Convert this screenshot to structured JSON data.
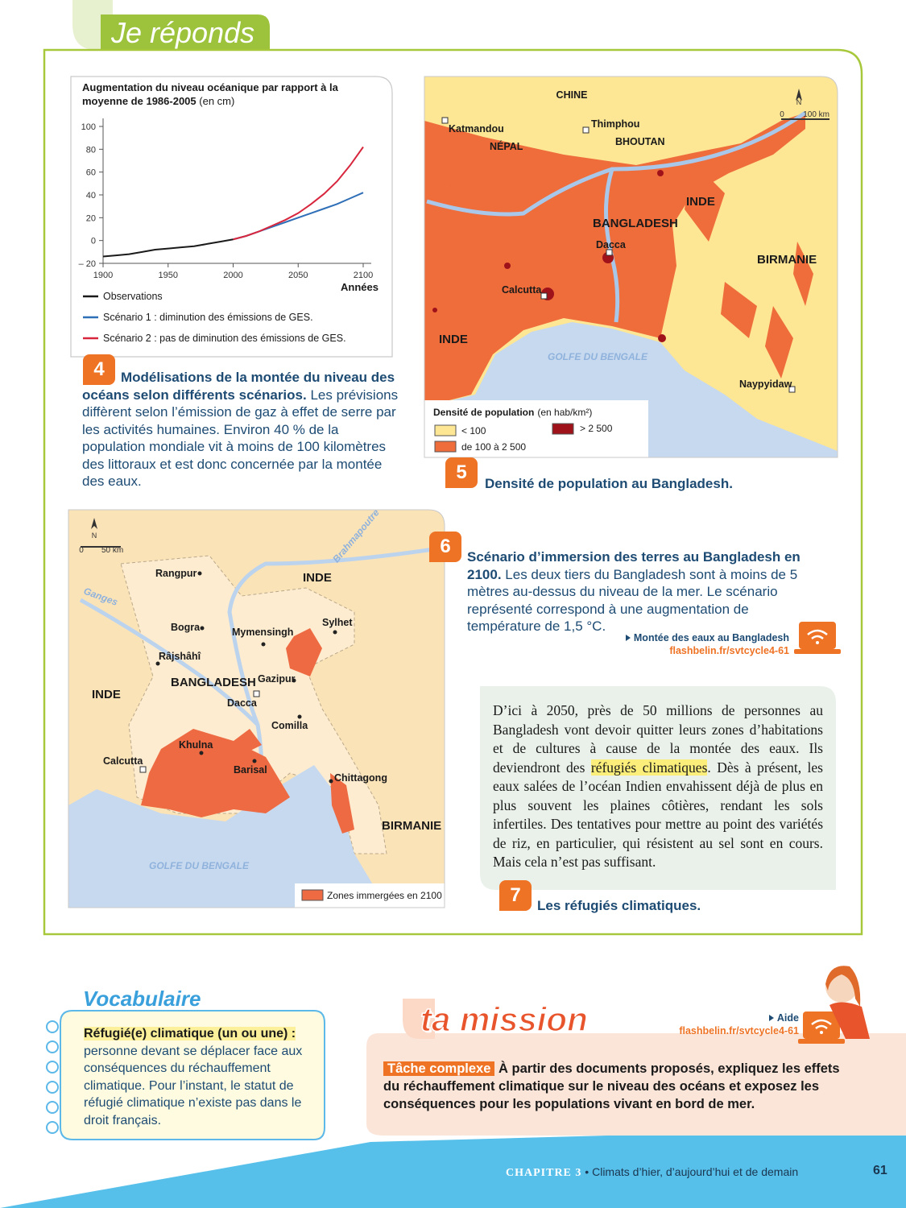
{
  "header": {
    "title": "Je réponds"
  },
  "chart_data": {
    "type": "line",
    "title": "Augmentation du niveau océanique par rapport à la moyenne de 1986-2005",
    "subtitle": "(en cm)",
    "xlabel": "Années",
    "x": [
      1900,
      1910,
      1920,
      1930,
      1940,
      1950,
      1960,
      1970,
      1980,
      1990,
      2000,
      2010,
      2020,
      2030,
      2040,
      2050,
      2060,
      2070,
      2080,
      2090,
      2100
    ],
    "series": [
      {
        "name": "Observations",
        "color": "#1a1a1a",
        "values": [
          -14,
          -13,
          -12,
          -10,
          -8,
          -7,
          -6,
          -5,
          -3,
          -1,
          1,
          null,
          null,
          null,
          null,
          null,
          null,
          null,
          null,
          null,
          null
        ]
      },
      {
        "name": "Scénario 1 : diminution des émissions de GES.",
        "color": "#2f6fb7",
        "values": [
          null,
          null,
          null,
          null,
          null,
          null,
          null,
          null,
          null,
          null,
          1,
          4,
          8,
          12,
          16,
          20,
          24,
          28,
          32,
          37,
          42
        ]
      },
      {
        "name": "Scénario 2 : pas de diminution des émissions de GES.",
        "color": "#d7263d",
        "values": [
          null,
          null,
          null,
          null,
          null,
          null,
          null,
          null,
          null,
          null,
          1,
          4,
          8,
          13,
          18,
          24,
          32,
          41,
          52,
          66,
          82
        ]
      }
    ],
    "xlim": [
      1900,
      2100
    ],
    "xticks": [
      1900,
      1950,
      2000,
      2050,
      2100
    ],
    "ylim": [
      -20,
      100
    ],
    "yticks": [
      {
        "value": -20,
        "label": "– 20"
      },
      0,
      20,
      40,
      60,
      80,
      100
    ],
    "grid": false
  },
  "doc4": {
    "number": "4",
    "caption_title": "Modélisations de la montée du niveau des océans selon différents scénarios.",
    "caption_text": "Les prévisions diffèrent selon l’émission de gaz à effet de serre par les activités humaines. Environ 40 % de la population mondiale vit à moins de 100 kilomètres des littoraux et est donc concernée par la montée des eaux."
  },
  "doc5": {
    "number": "5",
    "caption": "Densité de population au Bangladesh.",
    "labels": [
      "CHINE",
      "Katmandou",
      "NÉPAL",
      "Thimphou",
      "BHOUTAN",
      "INDE",
      "BANGLADESH",
      "Dacca",
      "BIRMANIE",
      "Calcutta",
      "INDE",
      "GOLFE DU BENGALE",
      "Naypyidaw"
    ],
    "north": "N",
    "scale": [
      "0",
      "100 km"
    ],
    "legend": {
      "title": "Densité de population",
      "unit": "(en hab/km²)",
      "items": [
        "< 100",
        "> 2 500",
        "de 100 à 2 500"
      ]
    }
  },
  "doc6": {
    "number": "6",
    "caption_title": "Scénario d’immersion des terres au Bangladesh en 2100.",
    "caption_text": "Les deux tiers du Bangladesh sont à moins de 5 mètres au-dessus du niveau de la mer. Le scénario représenté correspond à une augmentation de température de 1,5 °C.",
    "link": {
      "title": "Montée des eaux au Bangladesh",
      "url": "flashbelin.fr/svtcycle4-61"
    },
    "labels": [
      "Brahmapoutre",
      "Rangpur",
      "INDE",
      "Ganges",
      "Bogra",
      "Mymensingh",
      "Sylhet",
      "Râjshâhî",
      "BANGLADESH",
      "Gazipur",
      "Dacca",
      "INDE",
      "Comilla",
      "Khulna",
      "Calcutta",
      "Barisal",
      "Chittagong",
      "BIRMANIE",
      "GOLFE DU BENGALE"
    ],
    "north": "N",
    "scale": [
      "0",
      "50 km"
    ],
    "legend": "Zones immergées en 2100"
  },
  "doc7": {
    "number": "7",
    "caption": "Les réfugiés climatiques.",
    "text": [
      "D’ici à 2050, près de 50 millions de personnes au Bangladesh vont devoir quitter leurs zones d’habitations et de cultures à cause de la montée des eaux. Ils deviendront des ",
      "réfugiés climatiques",
      ". Dès à présent, les eaux salées de l’océan Indien envahissent déjà de plus en plus souvent les plaines côtières, rendant les sols infertiles. Des tentatives pour mettre au point des variétés de riz, en particulier, qui résistent au sel sont en cours. Mais cela n’est pas suffisant."
    ]
  },
  "vocabulary": {
    "title": "Vocabulaire",
    "term": "Réfugié(e) climatique (un ou une) :",
    "definition": "personne devant se déplacer face aux conséquences du réchauffement climatique. Pour l’instant, le statut de réfugié climatique n’existe pas dans le droit français."
  },
  "mission": {
    "title": "ta mission",
    "help": {
      "title": "Aide",
      "url": "flashbelin.fr/svtcycle4-61"
    },
    "task_label": "Tâche complexe",
    "task": "À partir des documents proposés, expliquez les effets du réchauffement climatique sur le niveau des océans et exposez les conséquences pour les populations vivant en bord de mer."
  },
  "footer": {
    "chapter": "CHAPITRE 3",
    "separator": "•",
    "chapter_title": "Climats d’hier, d’aujourd’hui et de demain",
    "page_number": "61"
  }
}
